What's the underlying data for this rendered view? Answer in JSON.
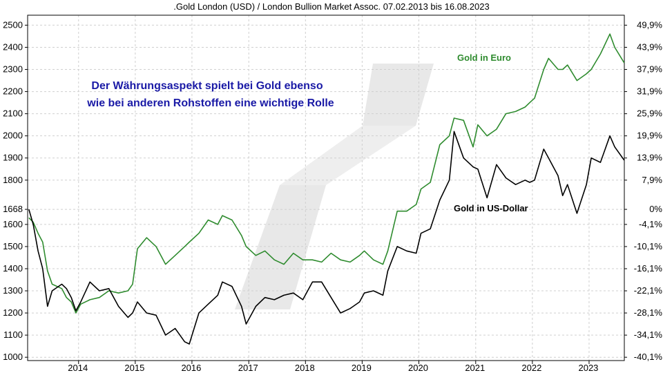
{
  "chart_data": {
    "type": "line",
    "title": ".Gold London (USD) / London Bullion Market Assoc. 07.02.2013 bis 16.08.2023",
    "xlabel": "",
    "ylabel": "",
    "x_ticks": [
      "2014",
      "2015",
      "2016",
      "2017",
      "2018",
      "2019",
      "2020",
      "2021",
      "2022",
      "2023"
    ],
    "y_left_ticks": [
      "2500",
      "2400",
      "2300",
      "2200",
      "2100",
      "2000",
      "1900",
      "1800",
      "1668",
      "1600",
      "1500",
      "1400",
      "1300",
      "1200",
      "1100",
      "1000"
    ],
    "y_left_tick_values": [
      2500,
      2400,
      2300,
      2200,
      2100,
      2000,
      1900,
      1800,
      1668,
      1600,
      1500,
      1400,
      1300,
      1200,
      1100,
      1000
    ],
    "y_right_ticks": [
      "49,9%",
      "43,9%",
      "37,9%",
      "31,9%",
      "25,9%",
      "19,9%",
      "13,9%",
      "7,9%",
      "0%",
      "-4,1%",
      "-10,1%",
      "-16,1%",
      "-22,1%",
      "-28,1%",
      "-34,1%",
      "-40,1%"
    ],
    "ylim": [
      985,
      2545
    ],
    "xlim": [
      "2013-02-07",
      "2023-08-16"
    ],
    "grid": true,
    "annotation": [
      "Der Währungsaspekt spielt bei Gold ebenso",
      "wie bei anderen Rohstoffen eine wichtige Rolle"
    ],
    "series": [
      {
        "name": "Gold in Euro",
        "color": "#2e8b2e",
        "x": [
          "2013-02",
          "2013-03",
          "2013-04",
          "2013-05",
          "2013-06",
          "2013-07",
          "2013-09",
          "2013-10",
          "2013-11",
          "2013-12",
          "2014-01",
          "2014-03",
          "2014-05",
          "2014-07",
          "2014-09",
          "2014-11",
          "2014-12",
          "2015-01",
          "2015-03",
          "2015-05",
          "2015-07",
          "2015-09",
          "2015-11",
          "2015-12",
          "2016-02",
          "2016-04",
          "2016-06",
          "2016-07",
          "2016-09",
          "2016-11",
          "2016-12",
          "2017-02",
          "2017-04",
          "2017-06",
          "2017-08",
          "2017-10",
          "2017-12",
          "2018-02",
          "2018-04",
          "2018-06",
          "2018-08",
          "2018-10",
          "2018-12",
          "2019-01",
          "2019-03",
          "2019-05",
          "2019-06",
          "2019-08",
          "2019-10",
          "2019-12",
          "2020-01",
          "2020-03",
          "2020-05",
          "2020-07",
          "2020-08",
          "2020-10",
          "2020-12",
          "2021-01",
          "2021-03",
          "2021-05",
          "2021-07",
          "2021-09",
          "2021-11",
          "2021-12",
          "2022-01",
          "2022-03",
          "2022-04",
          "2022-06",
          "2022-07",
          "2022-08",
          "2022-10",
          "2022-12",
          "2023-01",
          "2023-03",
          "2023-05",
          "2023-06",
          "2023-08"
        ],
        "values": [
          1630,
          1610,
          1560,
          1520,
          1390,
          1330,
          1310,
          1270,
          1250,
          1200,
          1240,
          1260,
          1270,
          1300,
          1290,
          1300,
          1330,
          1490,
          1540,
          1500,
          1420,
          1460,
          1500,
          1520,
          1560,
          1620,
          1600,
          1640,
          1620,
          1550,
          1500,
          1460,
          1480,
          1440,
          1420,
          1470,
          1440,
          1440,
          1430,
          1470,
          1440,
          1430,
          1460,
          1480,
          1440,
          1420,
          1480,
          1660,
          1660,
          1690,
          1760,
          1790,
          1960,
          2000,
          2080,
          2070,
          1950,
          2050,
          2000,
          2030,
          2100,
          2110,
          2130,
          2150,
          2170,
          2300,
          2350,
          2300,
          2300,
          2320,
          2250,
          2280,
          2300,
          2370,
          2460,
          2400,
          2330
        ]
      },
      {
        "name": "Gold in US-Dollar",
        "color": "#000000",
        "x": [
          "2013-02",
          "2013-03",
          "2013-04",
          "2013-05",
          "2013-06",
          "2013-07",
          "2013-09",
          "2013-10",
          "2013-11",
          "2013-12",
          "2014-01",
          "2014-03",
          "2014-05",
          "2014-07",
          "2014-09",
          "2014-11",
          "2014-12",
          "2015-01",
          "2015-03",
          "2015-05",
          "2015-07",
          "2015-09",
          "2015-11",
          "2015-12",
          "2016-02",
          "2016-04",
          "2016-06",
          "2016-07",
          "2016-09",
          "2016-11",
          "2016-12",
          "2017-02",
          "2017-04",
          "2017-06",
          "2017-08",
          "2017-10",
          "2017-12",
          "2018-02",
          "2018-04",
          "2018-06",
          "2018-08",
          "2018-10",
          "2018-12",
          "2019-01",
          "2019-03",
          "2019-05",
          "2019-06",
          "2019-08",
          "2019-10",
          "2019-12",
          "2020-01",
          "2020-03",
          "2020-05",
          "2020-07",
          "2020-08",
          "2020-10",
          "2020-12",
          "2021-01",
          "2021-03",
          "2021-05",
          "2021-07",
          "2021-09",
          "2021-11",
          "2021-12",
          "2022-01",
          "2022-03",
          "2022-04",
          "2022-06",
          "2022-07",
          "2022-08",
          "2022-10",
          "2022-12",
          "2023-01",
          "2023-03",
          "2023-05",
          "2023-06",
          "2023-08"
        ],
        "values": [
          1668,
          1600,
          1480,
          1400,
          1230,
          1300,
          1330,
          1310,
          1270,
          1210,
          1250,
          1340,
          1300,
          1310,
          1230,
          1180,
          1200,
          1250,
          1200,
          1190,
          1100,
          1130,
          1070,
          1060,
          1200,
          1240,
          1280,
          1340,
          1320,
          1230,
          1150,
          1230,
          1270,
          1260,
          1280,
          1290,
          1260,
          1340,
          1340,
          1270,
          1200,
          1220,
          1250,
          1290,
          1300,
          1280,
          1390,
          1500,
          1480,
          1470,
          1560,
          1580,
          1710,
          1800,
          2020,
          1900,
          1860,
          1850,
          1720,
          1870,
          1810,
          1780,
          1800,
          1790,
          1800,
          1940,
          1900,
          1820,
          1730,
          1780,
          1650,
          1780,
          1900,
          1880,
          2000,
          1950,
          1890
        ]
      }
    ]
  }
}
